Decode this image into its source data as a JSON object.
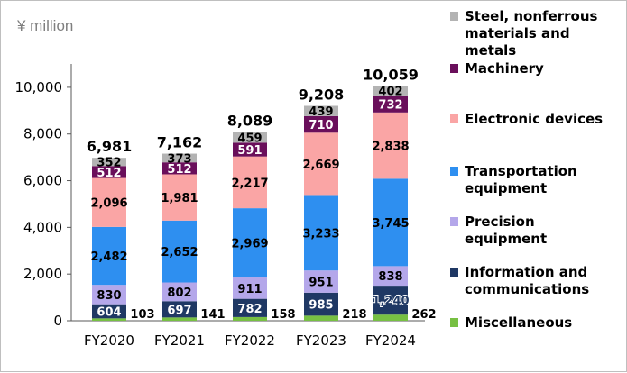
{
  "chart_data": {
    "type": "bar",
    "stacked": true,
    "unit_label": "¥ million",
    "categories": [
      "FY2020",
      "FY2021",
      "FY2022",
      "FY2023",
      "FY2024"
    ],
    "ylim": [
      0,
      11000
    ],
    "yticks": [
      0,
      2000,
      4000,
      6000,
      8000,
      10000
    ],
    "ytick_labels": [
      "0",
      "2,000",
      "4,000",
      "6,000",
      "8,000",
      "10,000"
    ],
    "totals": [
      "6,981",
      "7,162",
      "8,089",
      "9,208",
      "10,059"
    ],
    "series": [
      {
        "name": "Miscellaneous",
        "color": "#77c043",
        "values": [
          103,
          141,
          158,
          218,
          262
        ],
        "labels": [
          "103",
          "141",
          "158",
          "218",
          "262"
        ]
      },
      {
        "name": "Information and communications",
        "color": "#1f3864",
        "values": [
          604,
          697,
          782,
          985,
          1240
        ],
        "labels": [
          "604",
          "697",
          "782",
          "985",
          "1,240"
        ]
      },
      {
        "name": "Precision equipment",
        "color": "#b4a7ea",
        "values": [
          830,
          802,
          911,
          951,
          838
        ],
        "labels": [
          "830",
          "802",
          "911",
          "951",
          "838"
        ]
      },
      {
        "name": "Transportation equipment",
        "color": "#2e8ff0",
        "values": [
          2482,
          2652,
          2969,
          3233,
          3745
        ],
        "labels": [
          "2,482",
          "2,652",
          "2,969",
          "3,233",
          "3,745"
        ]
      },
      {
        "name": "Electronic devices",
        "color": "#faa5a5",
        "values": [
          2096,
          1981,
          2217,
          2669,
          2838
        ],
        "labels": [
          "2,096",
          "1,981",
          "2,217",
          "2,669",
          "2,838"
        ]
      },
      {
        "name": "Machinery",
        "color": "#6a0f5b",
        "values": [
          512,
          512,
          591,
          710,
          732
        ],
        "labels": [
          "512",
          "512",
          "591",
          "710",
          "732"
        ]
      },
      {
        "name": "Steel, nonferrous materials and metals",
        "color": "#b3b3b3",
        "values": [
          352,
          373,
          459,
          439,
          402
        ],
        "labels": [
          "352",
          "373",
          "459",
          "439",
          "402"
        ]
      }
    ],
    "legend_position": "right",
    "legend": [
      {
        "series": 6,
        "lines": [
          "Steel, nonferrous",
          "materials and",
          "metals"
        ]
      },
      {
        "series": 5,
        "lines": [
          "Machinery"
        ]
      },
      {
        "series": 4,
        "lines": [
          "Electronic devices"
        ]
      },
      {
        "series": 3,
        "lines": [
          "Transportation",
          "equipment"
        ]
      },
      {
        "series": 2,
        "lines": [
          "Precision",
          "equipment"
        ]
      },
      {
        "series": 1,
        "lines": [
          "Information and",
          "communications"
        ]
      },
      {
        "series": 0,
        "lines": [
          "Miscellaneous"
        ]
      }
    ]
  }
}
